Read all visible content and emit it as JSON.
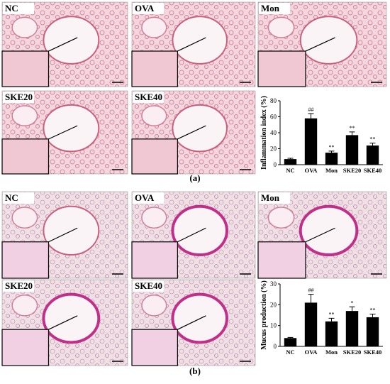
{
  "panels": [
    {
      "label": "(a)",
      "images": [
        "NC",
        "OVA",
        "Mon",
        "SKE20",
        "SKE40"
      ]
    },
    {
      "label": "(b)",
      "images": [
        "NC",
        "OVA",
        "Mon",
        "SKE20",
        "SKE40"
      ]
    }
  ],
  "chart_data": [
    {
      "type": "bar",
      "y_label": "Inflammation index (%)",
      "categories": [
        "NC",
        "OVA",
        "Mon",
        "SKE20",
        "SKE40"
      ],
      "values": [
        7,
        58,
        15,
        37,
        24
      ],
      "errors": [
        1,
        6,
        2,
        4,
        3
      ],
      "annotations": [
        null,
        "##",
        "**",
        "**",
        "**"
      ],
      "color": "#000000",
      "ylim": [
        0,
        80
      ],
      "yticks": [
        0,
        20,
        40,
        60,
        80
      ]
    },
    {
      "type": "bar",
      "y_label": "Mucus production (%)",
      "categories": [
        "NC",
        "OVA",
        "Mon",
        "SKE20",
        "SKE40"
      ],
      "values": [
        4,
        21,
        12,
        17,
        14
      ],
      "errors": [
        0.3,
        4,
        1.5,
        2,
        1.5
      ],
      "annotations": [
        null,
        "##",
        "**",
        "*",
        "**"
      ],
      "color": "#000000",
      "ylim": [
        0,
        30
      ],
      "yticks": [
        0,
        10,
        20,
        30
      ]
    }
  ]
}
